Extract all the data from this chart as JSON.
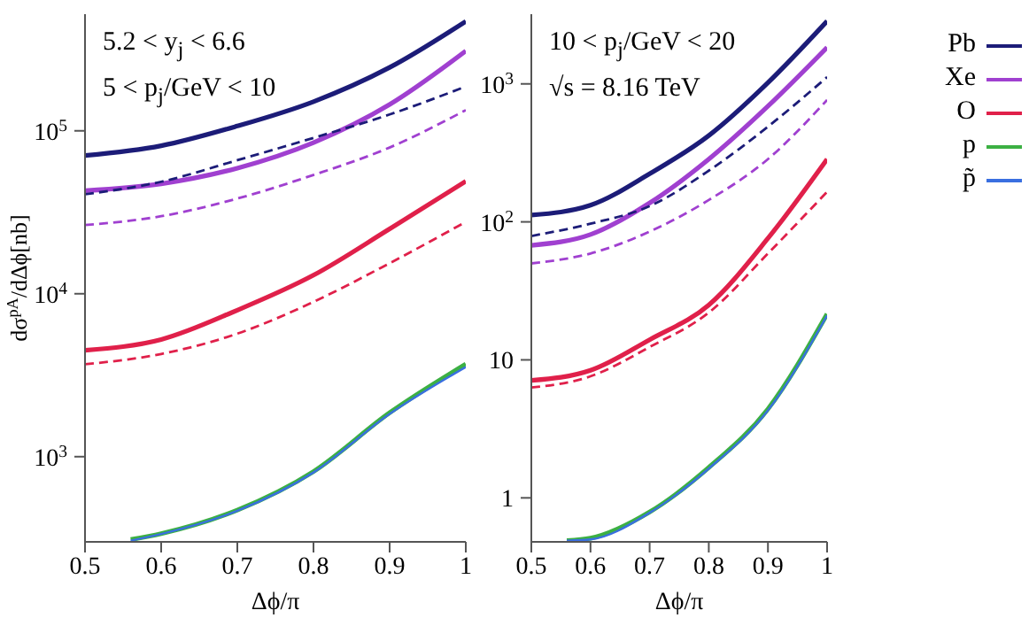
{
  "chart_data": [
    {
      "type": "line",
      "xlabel": "Δϕ/π",
      "ylabel": "dσ$^{pA}$/dΔϕ[nb]",
      "annotations": [
        "5.2 < y$_{j}$ < 6.6",
        "5 < p$_{j}$/GeV < 10"
      ],
      "log": "y",
      "legend": false,
      "marker": "none",
      "x": [
        0.5,
        0.6,
        0.7,
        0.8,
        0.9,
        1
      ],
      "xlim": [
        0.5,
        1
      ],
      "xticks": [
        0.5,
        0.6,
        0.7,
        0.8,
        0.9,
        1
      ],
      "ylim": [
        300,
        520000
      ],
      "yticks": [
        {
          "value": 1000,
          "label": "10$^{3}$"
        },
        {
          "value": 10000,
          "label": "10$^{4}$"
        },
        {
          "value": 100000,
          "label": "10$^{5}$"
        }
      ],
      "series": [
        {
          "color": "#1c1c78",
          "line_style": "solid",
          "values": [
            70500,
            81000,
            107000,
            151000,
            245000,
            470000
          ]
        },
        {
          "color": "#a040d0",
          "line_style": "solid",
          "values": [
            42900,
            47300,
            59000,
            84600,
            145000,
            309000
          ]
        },
        {
          "color": "#e0204a",
          "line_style": "solid",
          "values": [
            4500,
            5240,
            7930,
            13000,
            25000,
            49000
          ]
        },
        {
          "color": "#3cb043",
          "line_style": "solid",
          "x": [
            0.56,
            0.6,
            0.7,
            0.8,
            0.9,
            1
          ],
          "values": [
            310,
            337,
            470,
            810,
            1860,
            3700
          ]
        },
        {
          "color": "#3a6fe0",
          "line_style": "solid",
          "x": [
            0.56,
            0.6,
            0.7,
            0.8,
            0.9,
            1
          ],
          "values": [
            305,
            335,
            465,
            800,
            1830,
            3550
          ]
        },
        {
          "color": "#1c1c78",
          "line_style": "dashed",
          "values": [
            40800,
            48700,
            66000,
            90500,
            126000,
            187000
          ]
        },
        {
          "color": "#a040d0",
          "line_style": "dashed",
          "values": [
            26400,
            29900,
            38400,
            53600,
            79000,
            134000
          ]
        },
        {
          "color": "#e0204a",
          "line_style": "dashed",
          "values": [
            3690,
            4270,
            5690,
            8920,
            15400,
            27600
          ]
        }
      ]
    },
    {
      "type": "line",
      "xlabel": "Δϕ/π",
      "annotations": [
        "10 < p$_{j}$/GeV < 20",
        "√s = 8.16 TeV"
      ],
      "log": "y",
      "legend": "right",
      "marker": "none",
      "x": [
        0.5,
        0.6,
        0.7,
        0.8,
        0.9,
        1
      ],
      "xlim": [
        0.5,
        1
      ],
      "xticks": [
        0.5,
        0.6,
        0.7,
        0.8,
        0.9,
        1
      ],
      "ylim": [
        0.48,
        3200
      ],
      "yticks": [
        1,
        10,
        {
          "value": 100,
          "label": "10$^{2}$"
        },
        {
          "value": 1000,
          "label": "10$^{3}$"
        }
      ],
      "series": [
        {
          "name": "Pb",
          "color": "#1c1c78",
          "line_style": "solid",
          "values": [
            112,
            132,
            223,
            422,
            1020,
            2850
          ]
        },
        {
          "name": "Xe",
          "color": "#a040d0",
          "line_style": "solid",
          "values": [
            67.6,
            81,
            137,
            285,
            690,
            1840
          ]
        },
        {
          "name": "O",
          "color": "#e0204a",
          "line_style": "solid",
          "values": [
            7.1,
            8.4,
            14,
            25,
            76,
            285
          ]
        },
        {
          "name": "p",
          "color": "#3cb043",
          "line_style": "solid",
          "x": [
            0.56,
            0.6,
            0.7,
            0.8,
            0.9,
            1
          ],
          "values": [
            0.49,
            0.51,
            0.79,
            1.66,
            4.4,
            21.5
          ]
        },
        {
          "name": "p̃",
          "color": "#3a6fe0",
          "line_style": "solid",
          "x": [
            0.56,
            0.6,
            0.7,
            0.8,
            0.9,
            1
          ],
          "values": [
            0.49,
            0.5,
            0.78,
            1.63,
            4.3,
            21
          ]
        },
        {
          "color": "#1c1c78",
          "line_style": "dashed",
          "values": [
            79,
            97,
            130,
            235,
            490,
            1120
          ]
        },
        {
          "color": "#a040d0",
          "line_style": "dashed",
          "values": [
            50,
            59,
            85,
            144,
            285,
            765
          ]
        },
        {
          "color": "#e0204a",
          "line_style": "dashed",
          "values": [
            6.3,
            7.6,
            12.4,
            22,
            59,
            165
          ]
        }
      ]
    }
  ]
}
